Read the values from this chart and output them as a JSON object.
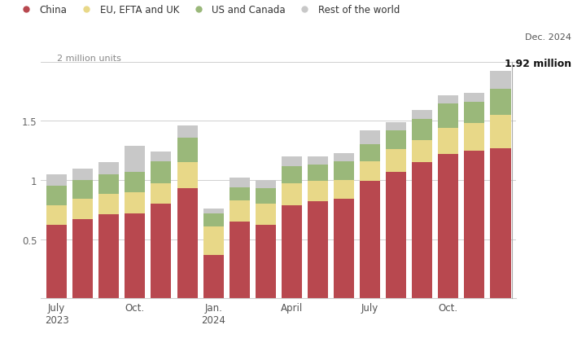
{
  "china": [
    0.62,
    0.67,
    0.71,
    0.72,
    0.8,
    0.93,
    0.37,
    0.65,
    0.62,
    0.79,
    0.82,
    0.84,
    0.99,
    1.07,
    1.15,
    1.22,
    1.25,
    1.27
  ],
  "eu_efta_uk": [
    0.17,
    0.17,
    0.17,
    0.18,
    0.17,
    0.22,
    0.24,
    0.18,
    0.18,
    0.18,
    0.17,
    0.16,
    0.17,
    0.19,
    0.19,
    0.22,
    0.23,
    0.28
  ],
  "us_canada": [
    0.16,
    0.16,
    0.17,
    0.17,
    0.19,
    0.21,
    0.11,
    0.11,
    0.13,
    0.15,
    0.14,
    0.16,
    0.14,
    0.16,
    0.18,
    0.21,
    0.18,
    0.22
  ],
  "rest_world": [
    0.1,
    0.1,
    0.1,
    0.22,
    0.08,
    0.1,
    0.04,
    0.08,
    0.07,
    0.08,
    0.07,
    0.07,
    0.12,
    0.07,
    0.07,
    0.07,
    0.08,
    0.15
  ],
  "colors": {
    "china": "#b8484f",
    "eu_efta_uk": "#e8d888",
    "us_canada": "#9ab87a",
    "rest_world": "#c8c8c8"
  },
  "legend_labels": [
    "China",
    "EU, EFTA and UK",
    "US and Canada",
    "Rest of the world"
  ],
  "tick_positions": [
    0,
    3,
    6,
    9,
    12,
    15
  ],
  "tick_labels": [
    "July\n2023",
    "Oct.",
    "Jan.\n2024",
    "April",
    "July",
    "Oct."
  ],
  "ylim": [
    0,
    2.0
  ],
  "yticks": [
    0.5,
    1.0,
    1.5,
    2.0
  ],
  "grid_color": "#d0d0d0",
  "annotation_label1": "Dec. 2024",
  "annotation_label2": "1.92 million",
  "million_units_label": "2 million units",
  "background_color": "#ffffff"
}
